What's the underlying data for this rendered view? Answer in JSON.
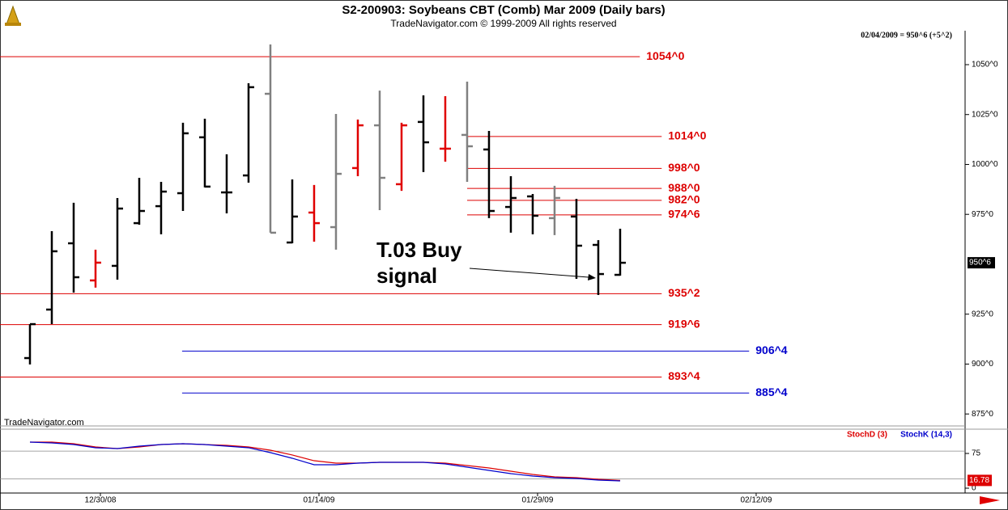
{
  "chart_data": [
    {
      "type": "ohlc",
      "title": "S2-200903:  Soybeans CBT (Comb) Mar 2009  (Daily bars)",
      "subtitle": "TradeNavigator.com © 1999-2009 All rights reserved",
      "info": "02/04/2009 = 950^6 (+5^2)",
      "watermark": "TradeNavigator.com",
      "open": [
        903.0,
        927.3,
        960.5,
        941.9,
        949.2,
        970.6,
        979.1,
        985.6,
        1013.6,
        986.0,
        994.5,
        1035.4,
        960.9,
        975.9,
        968.6,
        998.2,
        1019.6,
        990.1,
        1021.3,
        1007.9,
        1014.8,
        1007.5,
        978.7,
        984.0,
        973.1,
        973.9,
        959.7,
        944.7
      ],
      "high": [
        920.0,
        966.6,
        980.8,
        957.3,
        983.2,
        993.3,
        991.3,
        1020.9,
        1022.9,
        1005.1,
        1040.7,
        1060.1,
        992.5,
        989.7,
        1025.3,
        1022.5,
        1037.0,
        1020.9,
        1034.6,
        1034.2,
        1041.5,
        1016.8,
        994.1,
        985.2,
        989.3,
        982.8,
        962.1,
        967.8
      ],
      "low": [
        899.8,
        920.0,
        935.8,
        938.3,
        942.3,
        969.8,
        965.0,
        976.7,
        988.5,
        975.5,
        990.9,
        965.8,
        960.5,
        961.3,
        957.3,
        994.1,
        977.1,
        986.8,
        996.2,
        1001.4,
        991.3,
        973.1,
        965.8,
        965.0,
        964.6,
        942.7,
        934.6,
        944.3
      ],
      "close": [
        920.0,
        956.5,
        943.5,
        950.8,
        977.9,
        976.7,
        986.4,
        1015.6,
        988.9,
        986.0,
        1038.7,
        965.8,
        973.9,
        970.6,
        995.3,
        1019.6,
        993.3,
        1019.6,
        1011.1,
        1007.9,
        1009.1,
        976.7,
        983.2,
        974.3,
        983.2,
        959.3,
        945.1,
        950.75
      ],
      "colors": [
        "#000000",
        "#000000",
        "#000000",
        "#e00000",
        "#000000",
        "#000000",
        "#000000",
        "#000000",
        "#000000",
        "#000000",
        "#000000",
        "#808080",
        "#000000",
        "#e00000",
        "#808080",
        "#e00000",
        "#808080",
        "#e00000",
        "#000000",
        "#e00000",
        "#808080",
        "#000000",
        "#000000",
        "#000000",
        "#808080",
        "#000000",
        "#000000",
        "#000000"
      ],
      "current_label": "950^6",
      "xlim": [
        -1.37,
        42.78
      ],
      "xticks": [
        {
          "value": 3,
          "label": "12/30/08"
        },
        {
          "value": 13,
          "label": "01/14/09"
        },
        {
          "value": 23,
          "label": "01/29/09"
        },
        {
          "value": 33,
          "label": "02/12/09"
        }
      ],
      "ylim": [
        869,
        1067
      ],
      "yticks": [
        {
          "value": 875,
          "label": "875^0"
        },
        {
          "value": 900,
          "label": "900^0"
        },
        {
          "value": 925,
          "label": "925^0"
        },
        {
          "value": 975,
          "label": "975^0"
        },
        {
          "value": 1000,
          "label": "1000^0"
        },
        {
          "value": 1025,
          "label": "1025^0"
        },
        {
          "value": 1050,
          "label": "1050^0"
        }
      ],
      "levels": [
        {
          "value": 1054,
          "label": "1054^0",
          "color": "#dd0000",
          "end": 27.9
        },
        {
          "value": 1014,
          "label": "1014^0",
          "color": "#dd0000",
          "start": 20,
          "end": 28.9
        },
        {
          "value": 998,
          "label": "998^0",
          "color": "#dd0000",
          "start": 20,
          "end": 28.9
        },
        {
          "value": 988,
          "label": "988^0",
          "color": "#dd0000",
          "start": 20,
          "end": 28.9
        },
        {
          "value": 982,
          "label": "982^0",
          "color": "#dd0000",
          "start": 20,
          "end": 28.9
        },
        {
          "value": 974.75,
          "label": "974^6",
          "color": "#dd0000",
          "start": 20,
          "end": 28.9
        },
        {
          "value": 935.25,
          "label": "935^2",
          "color": "#dd0000",
          "end": 28.9
        },
        {
          "value": 919.75,
          "label": "919^6",
          "color": "#dd0000",
          "end": 28.9
        },
        {
          "value": 906.5,
          "label": "906^4",
          "color": "#0000cc",
          "start": 6.96,
          "end": 32.9
        },
        {
          "value": 893.5,
          "label": "893^4",
          "color": "#dd0000",
          "end": 28.9
        },
        {
          "value": 885.5,
          "label": "885^4",
          "color": "#0000cc",
          "start": 6.96,
          "end": 32.9
        }
      ],
      "annotation": [
        "T.03 Buy",
        "signal"
      ]
    },
    {
      "type": "line",
      "series": [
        {
          "name": "StochD (3)",
          "color": "#dd0000",
          "values": [
            99.5,
            99.5,
            96.0,
            89.0,
            85.5,
            89.0,
            94.2,
            96.0,
            94.2,
            92.5,
            89.0,
            82.0,
            71.6,
            59.3,
            54.1,
            54.1,
            55.8,
            55.8,
            55.8,
            54.1,
            48.9,
            43.6,
            36.6,
            29.7,
            24.4,
            22.7,
            19.2,
            16.78
          ]
        },
        {
          "name": "StochK (14,3)",
          "color": "#0000cc",
          "values": [
            99.5,
            97.7,
            94.2,
            87.3,
            85.5,
            90.8,
            94.2,
            96.0,
            94.2,
            90.8,
            87.3,
            76.8,
            64.6,
            50.6,
            50.6,
            54.1,
            55.8,
            55.8,
            55.8,
            52.4,
            45.4,
            38.4,
            31.4,
            26.2,
            22.7,
            20.9,
            17.5,
            15.7
          ]
        }
      ],
      "ylim": [
        -3.5,
        127.4
      ],
      "yticks": [
        0,
        75
      ],
      "levels": [
        80,
        20
      ]
    }
  ]
}
